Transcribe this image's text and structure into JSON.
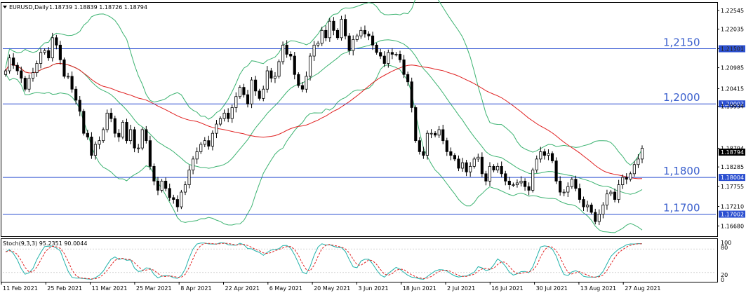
{
  "header": {
    "symbol": "EURUSD,Daily",
    "ohlc": "1.18739 1.18839 1.18726 1.18794"
  },
  "stoch": {
    "title": "Stoch(9,3,3) 95.2351 90.0044",
    "scale_labels": [
      "100",
      "80",
      "20",
      "0"
    ]
  },
  "colors": {
    "bull_candle": "#ffffff",
    "bear_candle": "#000000",
    "bollinger": "#3cb371",
    "ma": "#e02020",
    "level_line": "#2b4fd0",
    "stoch_main": "#20b2aa",
    "stoch_signal": "#e02020",
    "price_box": "#2b4fd0"
  },
  "chart_data": {
    "type": "candlestick",
    "x_tick_labels": [
      "11 Feb 2021",
      "25 Feb 2021",
      "11 Mar 2021",
      "25 Mar 2021",
      "8 Apr 2021",
      "22 Apr 2021",
      "6 May 2021",
      "20 May 2021",
      "3 Jun 2021",
      "18 Jun 2021",
      "2 Jul 2021",
      "16 Jul 2021",
      "30 Jul 2021",
      "13 Aug 2021",
      "27 Aug 2021"
    ],
    "y_tick_labels": [
      "1.22545",
      "1.22035",
      "1.21501",
      "1.20985",
      "1.20415",
      "1.19934",
      "1.18794",
      "1.18285",
      "1.17755",
      "1.17210",
      "1.16680"
    ],
    "ylim": [
      1.164,
      1.2275
    ],
    "horizontal_levels": [
      {
        "label": "1,2150",
        "price": 1.215,
        "box": "1.21501"
      },
      {
        "label": "1,2000",
        "price": 1.2,
        "box": "1.20002"
      },
      {
        "label": "1,1800",
        "price": 1.18,
        "box": "1.18004"
      },
      {
        "label": "1,1700",
        "price": 1.17,
        "box": "1.17002"
      }
    ],
    "last_price": "1.18794",
    "closes": [
      1.209,
      1.2125,
      1.2105,
      1.209,
      1.207,
      1.204,
      1.207,
      1.2085,
      1.211,
      1.214,
      1.2145,
      1.2125,
      1.218,
      1.216,
      1.212,
      1.2075,
      1.2075,
      1.204,
      1.201,
      1.198,
      1.192,
      1.191,
      1.186,
      1.189,
      1.19,
      1.193,
      1.1975,
      1.196,
      1.192,
      1.191,
      1.195,
      1.19,
      1.193,
      1.188,
      1.188,
      1.193,
      1.19,
      1.183,
      1.179,
      1.1765,
      1.179,
      1.177,
      1.1745,
      1.174,
      1.172,
      1.176,
      1.178,
      1.182,
      1.185,
      1.187,
      1.189,
      1.19,
      1.1885,
      1.192,
      1.1945,
      1.196,
      1.1975,
      1.196,
      1.199,
      1.202,
      1.2045,
      1.2025,
      1.2,
      1.2065,
      1.2035,
      1.2015,
      1.204,
      1.209,
      1.207,
      1.2075,
      1.2115,
      1.216,
      1.2135,
      1.213,
      1.208,
      1.205,
      1.204,
      1.2075,
      1.213,
      1.216,
      1.2165,
      1.22,
      1.218,
      1.2225,
      1.22,
      1.218,
      1.223,
      1.2185,
      1.2145,
      1.2175,
      1.2185,
      1.22,
      1.219,
      1.2185,
      1.216,
      1.214,
      1.213,
      1.211,
      1.214,
      1.2135,
      1.2135,
      1.212,
      1.208,
      1.206,
      1.199,
      1.19,
      1.187,
      1.186,
      1.192,
      1.192,
      1.1915,
      1.193,
      1.19,
      1.187,
      1.186,
      1.185,
      1.1825,
      1.184,
      1.1815,
      1.183,
      1.185,
      1.1855,
      1.181,
      1.179,
      1.183,
      1.182,
      1.183,
      1.181,
      1.179,
      1.178,
      1.178,
      1.1785,
      1.179,
      1.1775,
      1.1765,
      1.182,
      1.185,
      1.187,
      1.186,
      1.1865,
      1.1845,
      1.179,
      1.176,
      1.176,
      1.1775,
      1.1795,
      1.177,
      1.174,
      1.172,
      1.1725,
      1.1705,
      1.168,
      1.17,
      1.1725,
      1.1755,
      1.176,
      1.174,
      1.178,
      1.18,
      1.1795,
      1.181,
      1.1835,
      1.185,
      1.18794
    ]
  }
}
